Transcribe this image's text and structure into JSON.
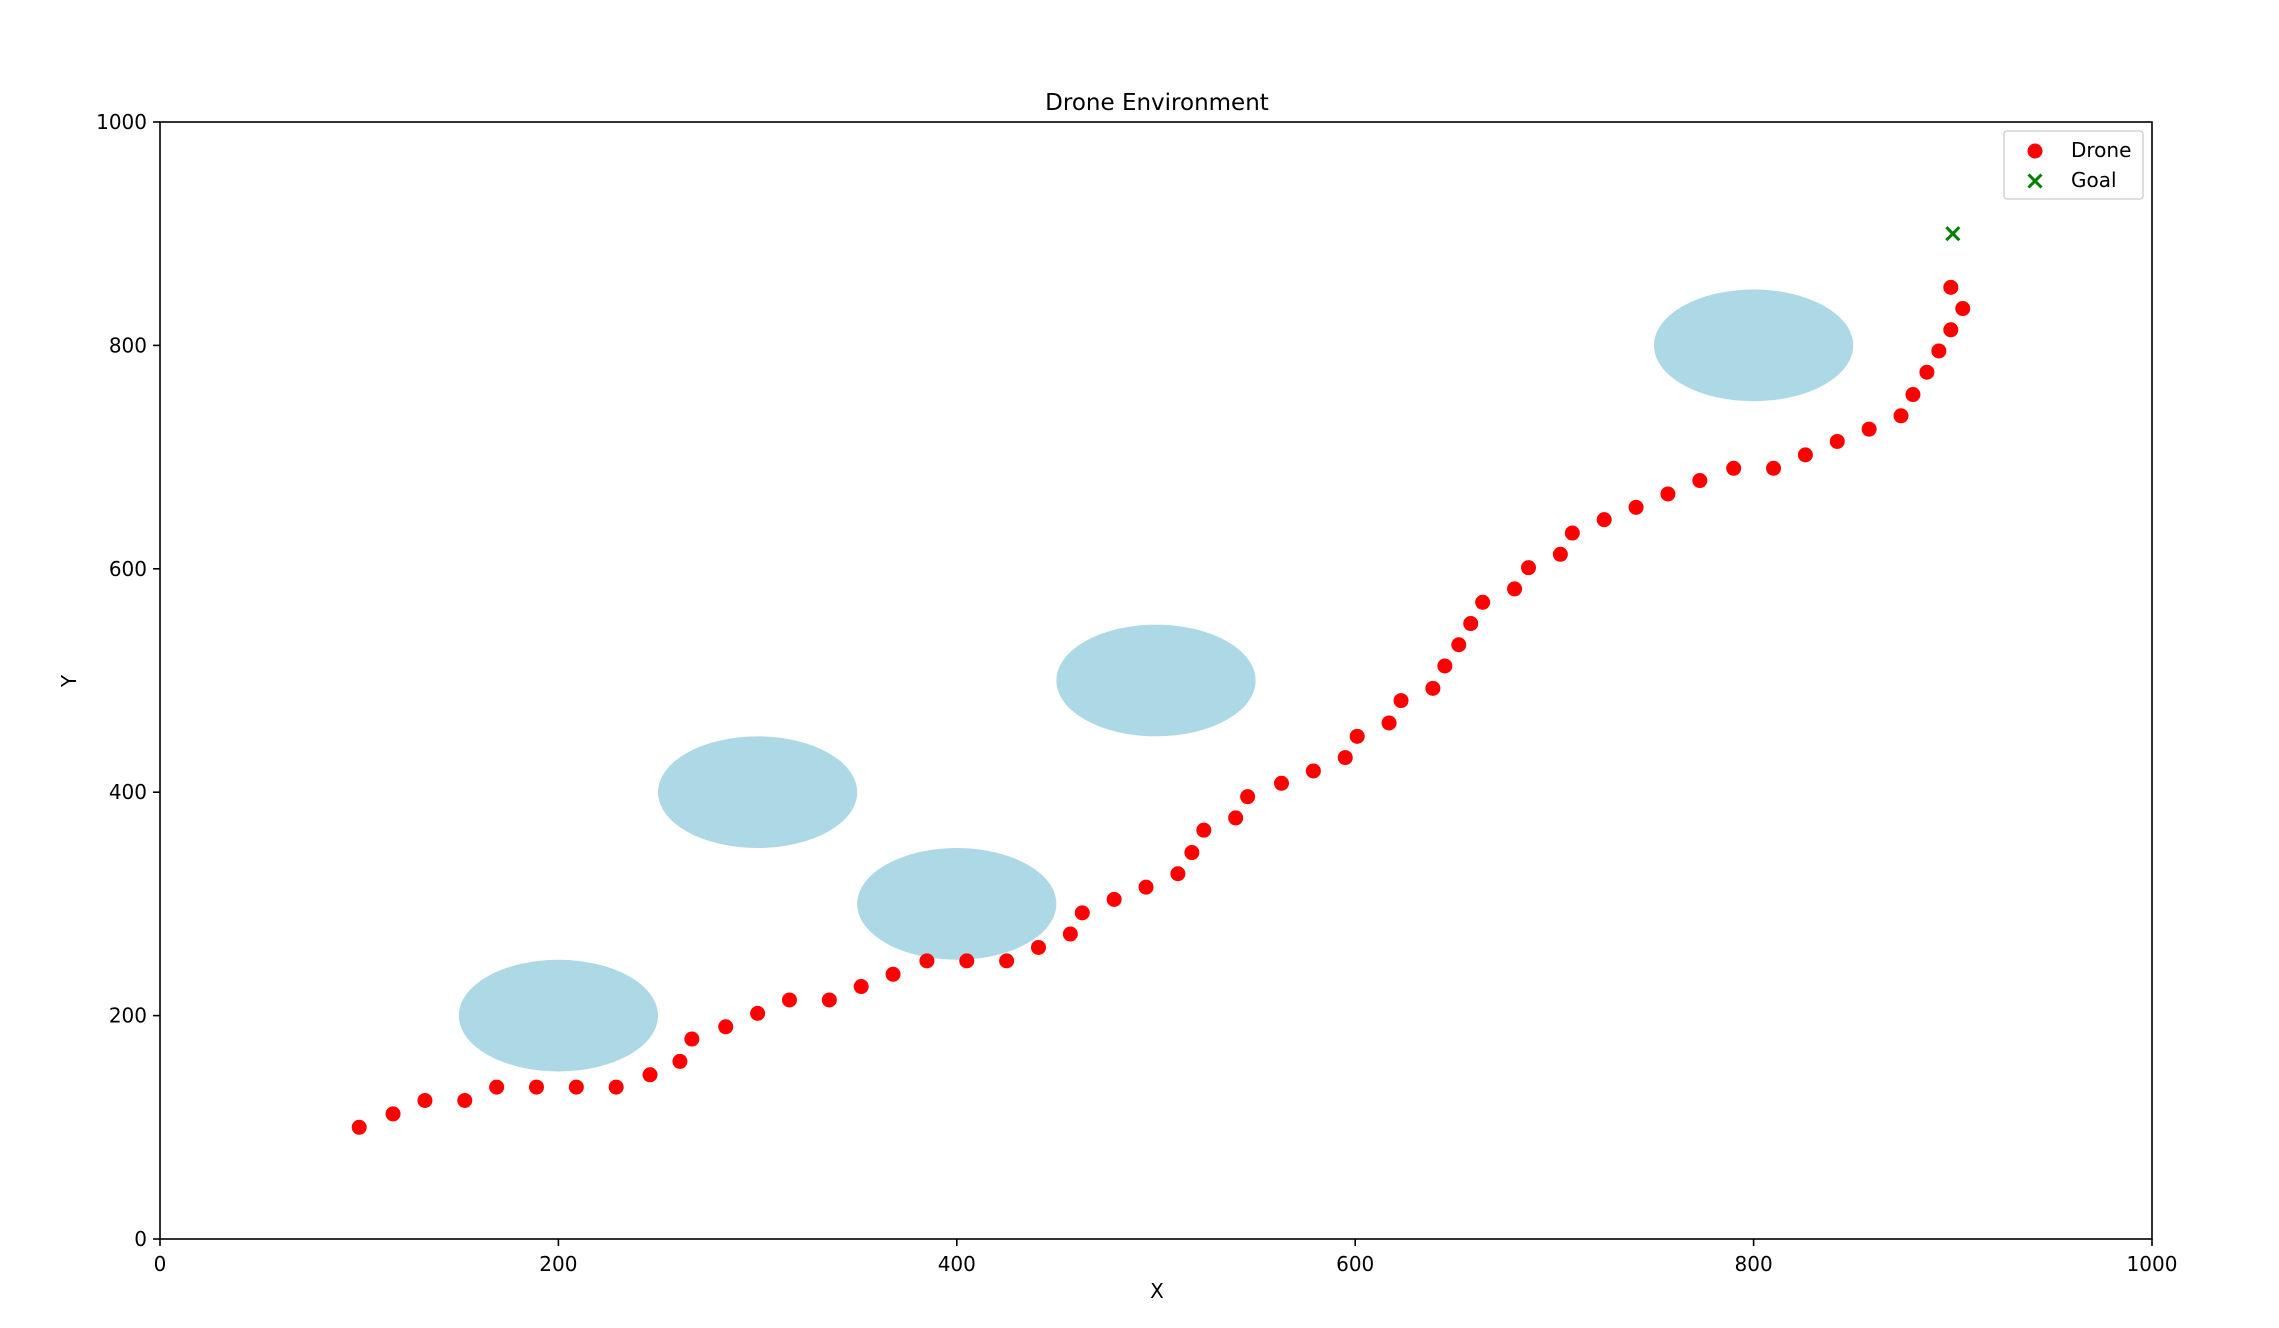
{
  "chart_data": {
    "type": "scatter",
    "title": "Drone Environment",
    "xlabel": "X",
    "ylabel": "Y",
    "xlim": [
      0,
      1000
    ],
    "ylim": [
      0,
      1000
    ],
    "xticks": [
      0,
      200,
      400,
      600,
      800,
      1000
    ],
    "yticks": [
      0,
      200,
      400,
      600,
      800,
      1000
    ],
    "xtick_labels": [
      "0",
      "200",
      "400",
      "600",
      "800",
      "1000"
    ],
    "ytick_labels": [
      "0",
      "200",
      "400",
      "600",
      "800",
      "1000"
    ],
    "grid": false,
    "legend_position": "top-right",
    "obstacle_color": "#add8e6",
    "obstacles": [
      {
        "x": 200,
        "y": 200,
        "rx": 50,
        "ry": 50
      },
      {
        "x": 300,
        "y": 400,
        "rx": 50,
        "ry": 50
      },
      {
        "x": 400,
        "y": 300,
        "rx": 50,
        "ry": 50
      },
      {
        "x": 500,
        "y": 500,
        "rx": 50,
        "ry": 50
      },
      {
        "x": 800,
        "y": 800,
        "rx": 50,
        "ry": 50
      }
    ],
    "series": [
      {
        "name": "Drone",
        "marker": "circle",
        "color": "#ff0000",
        "points": [
          [
            100,
            100
          ],
          [
            117,
            112
          ],
          [
            133,
            124
          ],
          [
            153,
            124
          ],
          [
            169,
            136
          ],
          [
            189,
            136
          ],
          [
            209,
            136
          ],
          [
            229,
            136
          ],
          [
            246,
            147
          ],
          [
            261,
            159
          ],
          [
            267,
            179
          ],
          [
            284,
            190
          ],
          [
            300,
            202
          ],
          [
            316,
            214
          ],
          [
            336,
            214
          ],
          [
            352,
            226
          ],
          [
            368,
            237
          ],
          [
            385,
            249
          ],
          [
            405,
            249
          ],
          [
            425,
            249
          ],
          [
            441,
            261
          ],
          [
            457,
            273
          ],
          [
            463,
            292
          ],
          [
            479,
            304
          ],
          [
            495,
            315
          ],
          [
            511,
            327
          ],
          [
            518,
            346
          ],
          [
            524,
            366
          ],
          [
            540,
            377
          ],
          [
            546,
            396
          ],
          [
            563,
            408
          ],
          [
            579,
            419
          ],
          [
            595,
            431
          ],
          [
            601,
            450
          ],
          [
            617,
            462
          ],
          [
            623,
            482
          ],
          [
            639,
            493
          ],
          [
            645,
            513
          ],
          [
            652,
            532
          ],
          [
            658,
            551
          ],
          [
            664,
            570
          ],
          [
            680,
            582
          ],
          [
            687,
            601
          ],
          [
            703,
            613
          ],
          [
            709,
            632
          ],
          [
            725,
            644
          ],
          [
            741,
            655
          ],
          [
            757,
            667
          ],
          [
            773,
            679
          ],
          [
            790,
            690
          ],
          [
            810,
            690
          ],
          [
            826,
            702
          ],
          [
            842,
            714
          ],
          [
            858,
            725
          ],
          [
            874,
            737
          ],
          [
            880,
            756
          ],
          [
            887,
            776
          ],
          [
            893,
            795
          ],
          [
            899,
            814
          ],
          [
            905,
            833
          ],
          [
            899,
            852
          ]
        ]
      },
      {
        "name": "Goal",
        "marker": "x",
        "color": "#008000",
        "points": [
          [
            900,
            900
          ]
        ]
      }
    ]
  }
}
